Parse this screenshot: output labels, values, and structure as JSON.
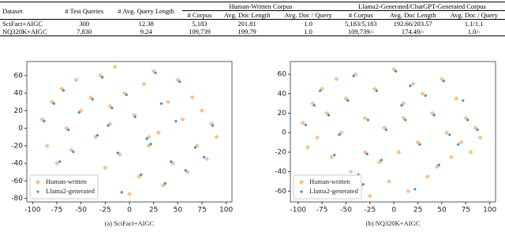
{
  "table": {
    "header": [
      "Dataset",
      "# Test Queries",
      "# Avg. Query Length",
      "Human-Written Corpus",
      "Llama2-Generated/ChatGPT-Generated Corpus"
    ],
    "subheader": [
      "# Corpus",
      "Avg. Doc Length",
      "Avg. Doc / Query",
      "# Corpus",
      "Avg. Doc Length",
      "Avg. Doc / Query"
    ],
    "rows": [
      [
        "SciFact+AIGC",
        "300",
        "12.38",
        "5,183",
        "201.81",
        "1.0",
        "5,183/5,183",
        "192.66/203.57",
        "1.1/1.1"
      ],
      [
        "NQ320K+AIGC",
        "7,830",
        "9.24",
        "109,739",
        "199.79",
        "1.0",
        "109,739/-",
        "174.49/-",
        "1.0/-"
      ]
    ]
  },
  "chart_data": [
    {
      "type": "scatter",
      "caption": "(a) SciFact+AIGC",
      "legend": "lower left",
      "xlim": [
        -106,
        106
      ],
      "ylim": [
        -84,
        76
      ],
      "xticks": [
        -100,
        -75,
        -50,
        -25,
        0,
        25,
        50,
        75,
        100
      ],
      "yticks": [
        -80,
        -60,
        -40,
        -20,
        0,
        20,
        40,
        60
      ],
      "series": [
        {
          "name": "Human-written",
          "color": "#f7c08c",
          "x": [
            -90,
            -85,
            -80,
            -75,
            -70,
            -65,
            -60,
            -55,
            -50,
            -45,
            -40,
            -35,
            -30,
            -25,
            -20,
            -15,
            -10,
            -5,
            0,
            5,
            10,
            15,
            20,
            25,
            30,
            35,
            40,
            45,
            50,
            55,
            60,
            65,
            70,
            75,
            80,
            85,
            90,
            -60,
            -20,
            20
          ],
          "y": [
            10,
            -20,
            30,
            -40,
            45,
            0,
            -60,
            55,
            20,
            -70,
            35,
            -10,
            60,
            -45,
            5,
            70,
            -30,
            40,
            -75,
            15,
            -55,
            50,
            -20,
            65,
            -5,
            -65,
            30,
            -40,
            55,
            10,
            -50,
            35,
            -20,
            20,
            -35,
            5,
            -10,
            -25,
            25,
            -10
          ]
        },
        {
          "name": "Llama2-generated",
          "color": "#3a8dc2",
          "x": [
            -88,
            -78,
            -72,
            -63,
            -52,
            -46,
            -38,
            -28,
            -22,
            -12,
            -3,
            6,
            12,
            22,
            27,
            37,
            43,
            52,
            58,
            68,
            77,
            86,
            -58,
            -18,
            18,
            -33,
            33,
            -8,
            48,
            -68
          ],
          "y": [
            8,
            28,
            -38,
            -2,
            18,
            -68,
            33,
            58,
            3,
            -28,
            38,
            13,
            -53,
            -18,
            63,
            -63,
            -38,
            53,
            -48,
            -22,
            -33,
            3,
            -27,
            23,
            -12,
            -8,
            28,
            -73,
            8,
            43
          ]
        }
      ]
    },
    {
      "type": "scatter",
      "caption": "(b) NQ320K+AIGC",
      "legend": "lower left",
      "xlim": [
        -108,
        106
      ],
      "ylim": [
        -71,
        73
      ],
      "xticks": [
        -100,
        -75,
        -50,
        -25,
        0,
        25,
        50,
        75,
        100
      ],
      "yticks": [
        -60,
        -40,
        -20,
        0,
        20,
        40,
        60
      ],
      "series": [
        {
          "name": "Human-written",
          "color": "#f7c08c",
          "x": [
            -95,
            -90,
            -85,
            -80,
            -75,
            -70,
            -65,
            -60,
            -55,
            -50,
            -45,
            -40,
            -35,
            -30,
            -25,
            -20,
            -15,
            -10,
            -5,
            0,
            5,
            10,
            15,
            20,
            25,
            30,
            35,
            40,
            45,
            50,
            55,
            60,
            65,
            70,
            75,
            80,
            85,
            90,
            -30,
            10
          ],
          "y": [
            10,
            -15,
            30,
            -5,
            45,
            20,
            -25,
            55,
            0,
            35,
            -40,
            60,
            -55,
            15,
            -65,
            45,
            -30,
            5,
            -50,
            65,
            -20,
            30,
            -60,
            50,
            -10,
            40,
            -45,
            20,
            -35,
            55,
            0,
            -25,
            35,
            -10,
            15,
            -20,
            5,
            -5,
            -20,
            15
          ]
        },
        {
          "name": "Llama2-generated",
          "color": "#3a8dc2",
          "x": [
            -92,
            -83,
            -77,
            -68,
            -57,
            -48,
            -42,
            -32,
            -27,
            -18,
            -8,
            2,
            8,
            17,
            27,
            33,
            42,
            52,
            58,
            67,
            77,
            87,
            -28,
            12,
            -62,
            -37,
            22,
            47,
            72,
            -13
          ],
          "y": [
            8,
            28,
            43,
            18,
            -2,
            33,
            58,
            -53,
            13,
            43,
            3,
            63,
            28,
            48,
            -12,
            38,
            18,
            53,
            -2,
            -12,
            13,
            3,
            -22,
            13,
            -23,
            -43,
            -58,
            -33,
            33,
            -28
          ]
        }
      ]
    }
  ]
}
